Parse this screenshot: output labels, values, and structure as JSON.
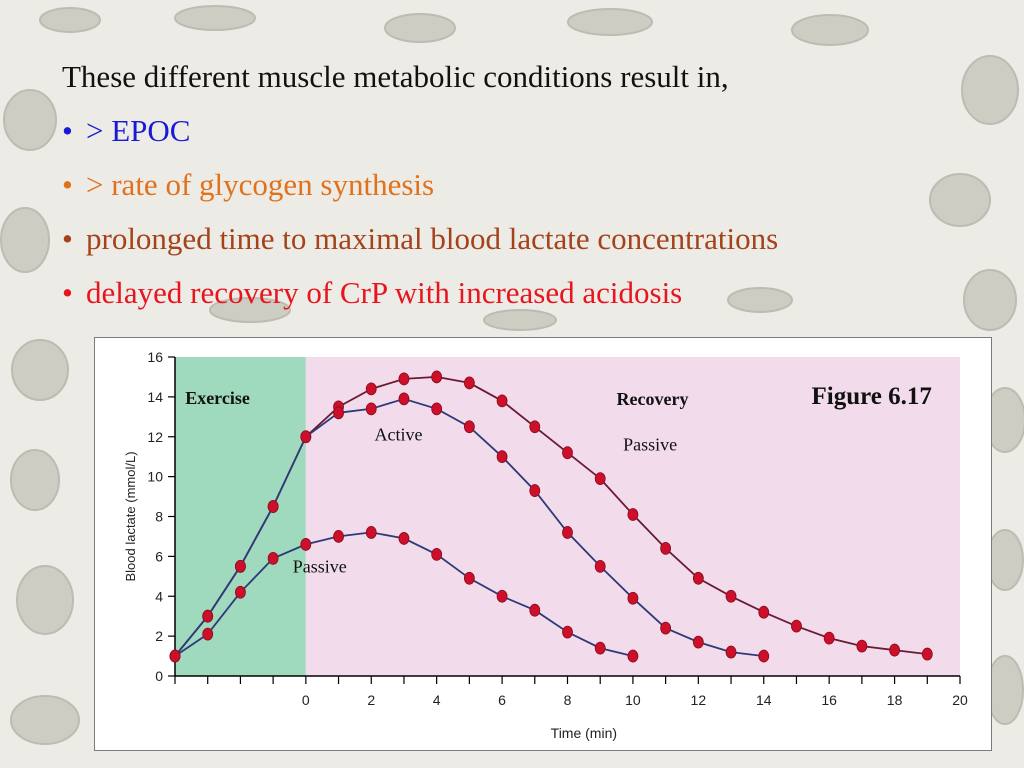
{
  "slide": {
    "intro": "These different muscle metabolic conditions result in,",
    "bullet_char": "•",
    "bullets": [
      {
        "prefix": "> ",
        "text": "EPOC",
        "color": "#1a1ad6"
      },
      {
        "prefix": "> ",
        "text": "rate of glycogen synthesis",
        "color": "#e2711c"
      },
      {
        "prefix": "",
        "text": "prolonged time to maximal blood lactate concentrations",
        "color": "#a4421a"
      },
      {
        "prefix": "",
        "text": "delayed recovery of CrP with increased acidosis",
        "color": "#e8141e"
      }
    ]
  },
  "chart_data": {
    "type": "line",
    "figure_label": "Figure 6.17",
    "xlabel": "Time (min)",
    "ylabel": "Blood lactate (mmol/L)",
    "xlim": [
      -4,
      20
    ],
    "ylim": [
      0,
      16
    ],
    "x_ticks": [
      0,
      2,
      4,
      6,
      8,
      10,
      12,
      14,
      16,
      18,
      20
    ],
    "y_ticks": [
      0,
      2,
      4,
      6,
      8,
      10,
      12,
      14,
      16
    ],
    "regions": [
      {
        "label": "Exercise",
        "from": -4,
        "to": 0,
        "color": "#9fd9be"
      },
      {
        "label": "Recovery",
        "from": 0,
        "to": 20,
        "color": "#f2dcec"
      }
    ],
    "series": [
      {
        "name": "Passive",
        "color": "#cc0f2a",
        "line_color": "#6b1a35",
        "x": [
          -4,
          -3,
          -2,
          -1,
          0,
          1,
          2,
          3,
          4,
          5,
          6,
          7,
          8,
          9,
          10,
          11,
          12,
          13,
          14,
          15,
          16,
          17,
          18,
          19
        ],
        "y": [
          1.0,
          3.0,
          5.5,
          8.5,
          12.0,
          13.5,
          14.4,
          14.9,
          15.0,
          14.7,
          13.8,
          12.5,
          11.2,
          9.9,
          8.1,
          6.4,
          4.9,
          4.0,
          3.2,
          2.5,
          1.9,
          1.5,
          1.3,
          1.1
        ]
      },
      {
        "name": "Active",
        "color": "#cc0f2a",
        "line_color": "#2d3a78",
        "x": [
          -4,
          -3,
          -2,
          -1,
          0,
          1,
          2,
          3,
          4,
          5,
          6,
          7,
          8,
          9,
          10,
          11,
          12,
          13,
          14
        ],
        "y": [
          1.0,
          3.0,
          5.5,
          8.5,
          12.0,
          13.2,
          13.4,
          13.9,
          13.4,
          12.5,
          11.0,
          9.3,
          7.2,
          5.5,
          3.9,
          2.4,
          1.7,
          1.2,
          1.0
        ]
      },
      {
        "name": "Passive",
        "color": "#cc0f2a",
        "line_color": "#2d3a78",
        "x": [
          -4,
          -3,
          -2,
          -1,
          0,
          1,
          2,
          3,
          4,
          5,
          6,
          7,
          8,
          9,
          10
        ],
        "y": [
          1.0,
          2.1,
          4.2,
          5.9,
          6.6,
          7.0,
          7.2,
          6.9,
          6.1,
          4.9,
          4.0,
          3.3,
          2.2,
          1.4,
          1.0
        ]
      }
    ],
    "series_labels": [
      {
        "text": "Passive",
        "series": 0,
        "at": [
          9.7,
          11.3
        ]
      },
      {
        "text": "Active",
        "series": 1,
        "at": [
          2.1,
          11.8
        ]
      },
      {
        "text": "Passive",
        "series": 2,
        "at": [
          -0.4,
          5.2
        ]
      }
    ]
  }
}
